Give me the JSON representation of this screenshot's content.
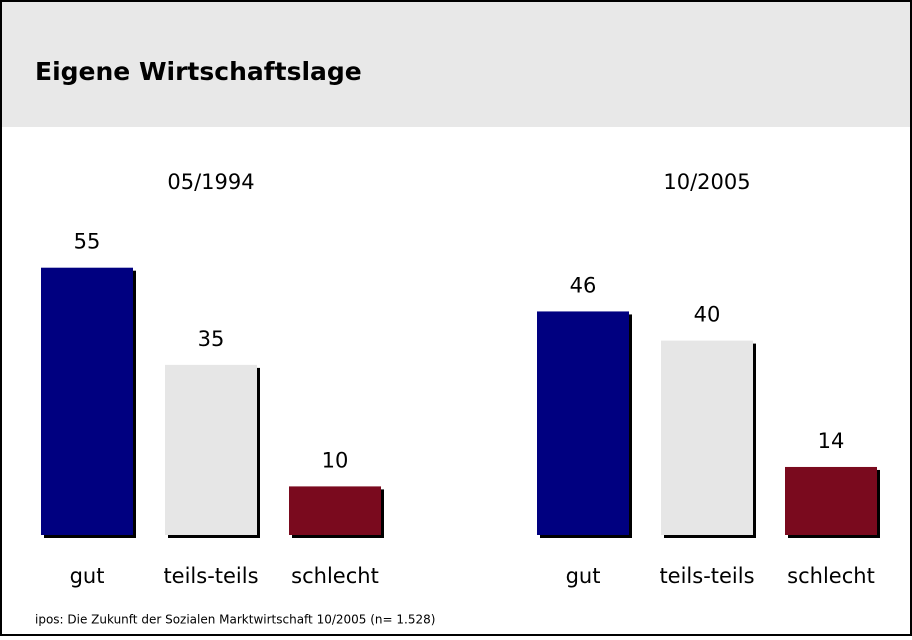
{
  "header": {
    "title": "Eigene Wirtschaftslage"
  },
  "chart_data": [
    {
      "type": "bar",
      "title": "05/1994",
      "categories": [
        "gut",
        "teils-teils",
        "schlecht"
      ],
      "values": [
        55,
        35,
        10
      ],
      "colors": [
        "#000080",
        "#e6e6e6",
        "#7a0a1e"
      ]
    },
    {
      "type": "bar",
      "title": "10/2005",
      "categories": [
        "gut",
        "teils-teils",
        "schlecht"
      ],
      "values": [
        46,
        40,
        14
      ],
      "colors": [
        "#000080",
        "#e6e6e6",
        "#7a0a1e"
      ]
    }
  ],
  "footer": {
    "source": "ipos: Die Zukunft der Sozialen Marktwirtschaft 10/2005 (n= 1.528)"
  }
}
